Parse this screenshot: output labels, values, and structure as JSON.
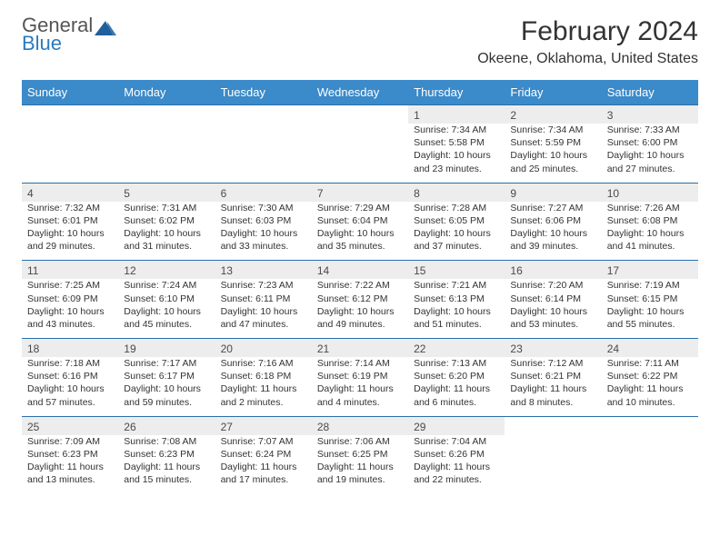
{
  "logo": {
    "line1": "General",
    "line2": "Blue",
    "color1": "#555555",
    "color2": "#2a7bbf",
    "shape_color": "#1f5f9c"
  },
  "title": "February 2024",
  "location": "Okeene, Oklahoma, United States",
  "colors": {
    "header_bg": "#3b8aca",
    "header_fg": "#ffffff",
    "daynum_bg": "#ededed",
    "rule": "#2a6fa8",
    "text": "#333333"
  },
  "font": {
    "family": "Arial",
    "title_size": 30,
    "loc_size": 16,
    "th_size": 13,
    "daynum_size": 12,
    "cell_size": 10.5
  },
  "weekdays": [
    "Sunday",
    "Monday",
    "Tuesday",
    "Wednesday",
    "Thursday",
    "Friday",
    "Saturday"
  ],
  "weeks": [
    [
      null,
      null,
      null,
      null,
      {
        "n": "1",
        "sr": "7:34 AM",
        "ss": "5:58 PM",
        "dl": "10 hours and 23 minutes."
      },
      {
        "n": "2",
        "sr": "7:34 AM",
        "ss": "5:59 PM",
        "dl": "10 hours and 25 minutes."
      },
      {
        "n": "3",
        "sr": "7:33 AM",
        "ss": "6:00 PM",
        "dl": "10 hours and 27 minutes."
      }
    ],
    [
      {
        "n": "4",
        "sr": "7:32 AM",
        "ss": "6:01 PM",
        "dl": "10 hours and 29 minutes."
      },
      {
        "n": "5",
        "sr": "7:31 AM",
        "ss": "6:02 PM",
        "dl": "10 hours and 31 minutes."
      },
      {
        "n": "6",
        "sr": "7:30 AM",
        "ss": "6:03 PM",
        "dl": "10 hours and 33 minutes."
      },
      {
        "n": "7",
        "sr": "7:29 AM",
        "ss": "6:04 PM",
        "dl": "10 hours and 35 minutes."
      },
      {
        "n": "8",
        "sr": "7:28 AM",
        "ss": "6:05 PM",
        "dl": "10 hours and 37 minutes."
      },
      {
        "n": "9",
        "sr": "7:27 AM",
        "ss": "6:06 PM",
        "dl": "10 hours and 39 minutes."
      },
      {
        "n": "10",
        "sr": "7:26 AM",
        "ss": "6:08 PM",
        "dl": "10 hours and 41 minutes."
      }
    ],
    [
      {
        "n": "11",
        "sr": "7:25 AM",
        "ss": "6:09 PM",
        "dl": "10 hours and 43 minutes."
      },
      {
        "n": "12",
        "sr": "7:24 AM",
        "ss": "6:10 PM",
        "dl": "10 hours and 45 minutes."
      },
      {
        "n": "13",
        "sr": "7:23 AM",
        "ss": "6:11 PM",
        "dl": "10 hours and 47 minutes."
      },
      {
        "n": "14",
        "sr": "7:22 AM",
        "ss": "6:12 PM",
        "dl": "10 hours and 49 minutes."
      },
      {
        "n": "15",
        "sr": "7:21 AM",
        "ss": "6:13 PM",
        "dl": "10 hours and 51 minutes."
      },
      {
        "n": "16",
        "sr": "7:20 AM",
        "ss": "6:14 PM",
        "dl": "10 hours and 53 minutes."
      },
      {
        "n": "17",
        "sr": "7:19 AM",
        "ss": "6:15 PM",
        "dl": "10 hours and 55 minutes."
      }
    ],
    [
      {
        "n": "18",
        "sr": "7:18 AM",
        "ss": "6:16 PM",
        "dl": "10 hours and 57 minutes."
      },
      {
        "n": "19",
        "sr": "7:17 AM",
        "ss": "6:17 PM",
        "dl": "10 hours and 59 minutes."
      },
      {
        "n": "20",
        "sr": "7:16 AM",
        "ss": "6:18 PM",
        "dl": "11 hours and 2 minutes."
      },
      {
        "n": "21",
        "sr": "7:14 AM",
        "ss": "6:19 PM",
        "dl": "11 hours and 4 minutes."
      },
      {
        "n": "22",
        "sr": "7:13 AM",
        "ss": "6:20 PM",
        "dl": "11 hours and 6 minutes."
      },
      {
        "n": "23",
        "sr": "7:12 AM",
        "ss": "6:21 PM",
        "dl": "11 hours and 8 minutes."
      },
      {
        "n": "24",
        "sr": "7:11 AM",
        "ss": "6:22 PM",
        "dl": "11 hours and 10 minutes."
      }
    ],
    [
      {
        "n": "25",
        "sr": "7:09 AM",
        "ss": "6:23 PM",
        "dl": "11 hours and 13 minutes."
      },
      {
        "n": "26",
        "sr": "7:08 AM",
        "ss": "6:23 PM",
        "dl": "11 hours and 15 minutes."
      },
      {
        "n": "27",
        "sr": "7:07 AM",
        "ss": "6:24 PM",
        "dl": "11 hours and 17 minutes."
      },
      {
        "n": "28",
        "sr": "7:06 AM",
        "ss": "6:25 PM",
        "dl": "11 hours and 19 minutes."
      },
      {
        "n": "29",
        "sr": "7:04 AM",
        "ss": "6:26 PM",
        "dl": "11 hours and 22 minutes."
      },
      null,
      null
    ]
  ],
  "labels": {
    "sunrise": "Sunrise:",
    "sunset": "Sunset:",
    "daylight": "Daylight:"
  }
}
